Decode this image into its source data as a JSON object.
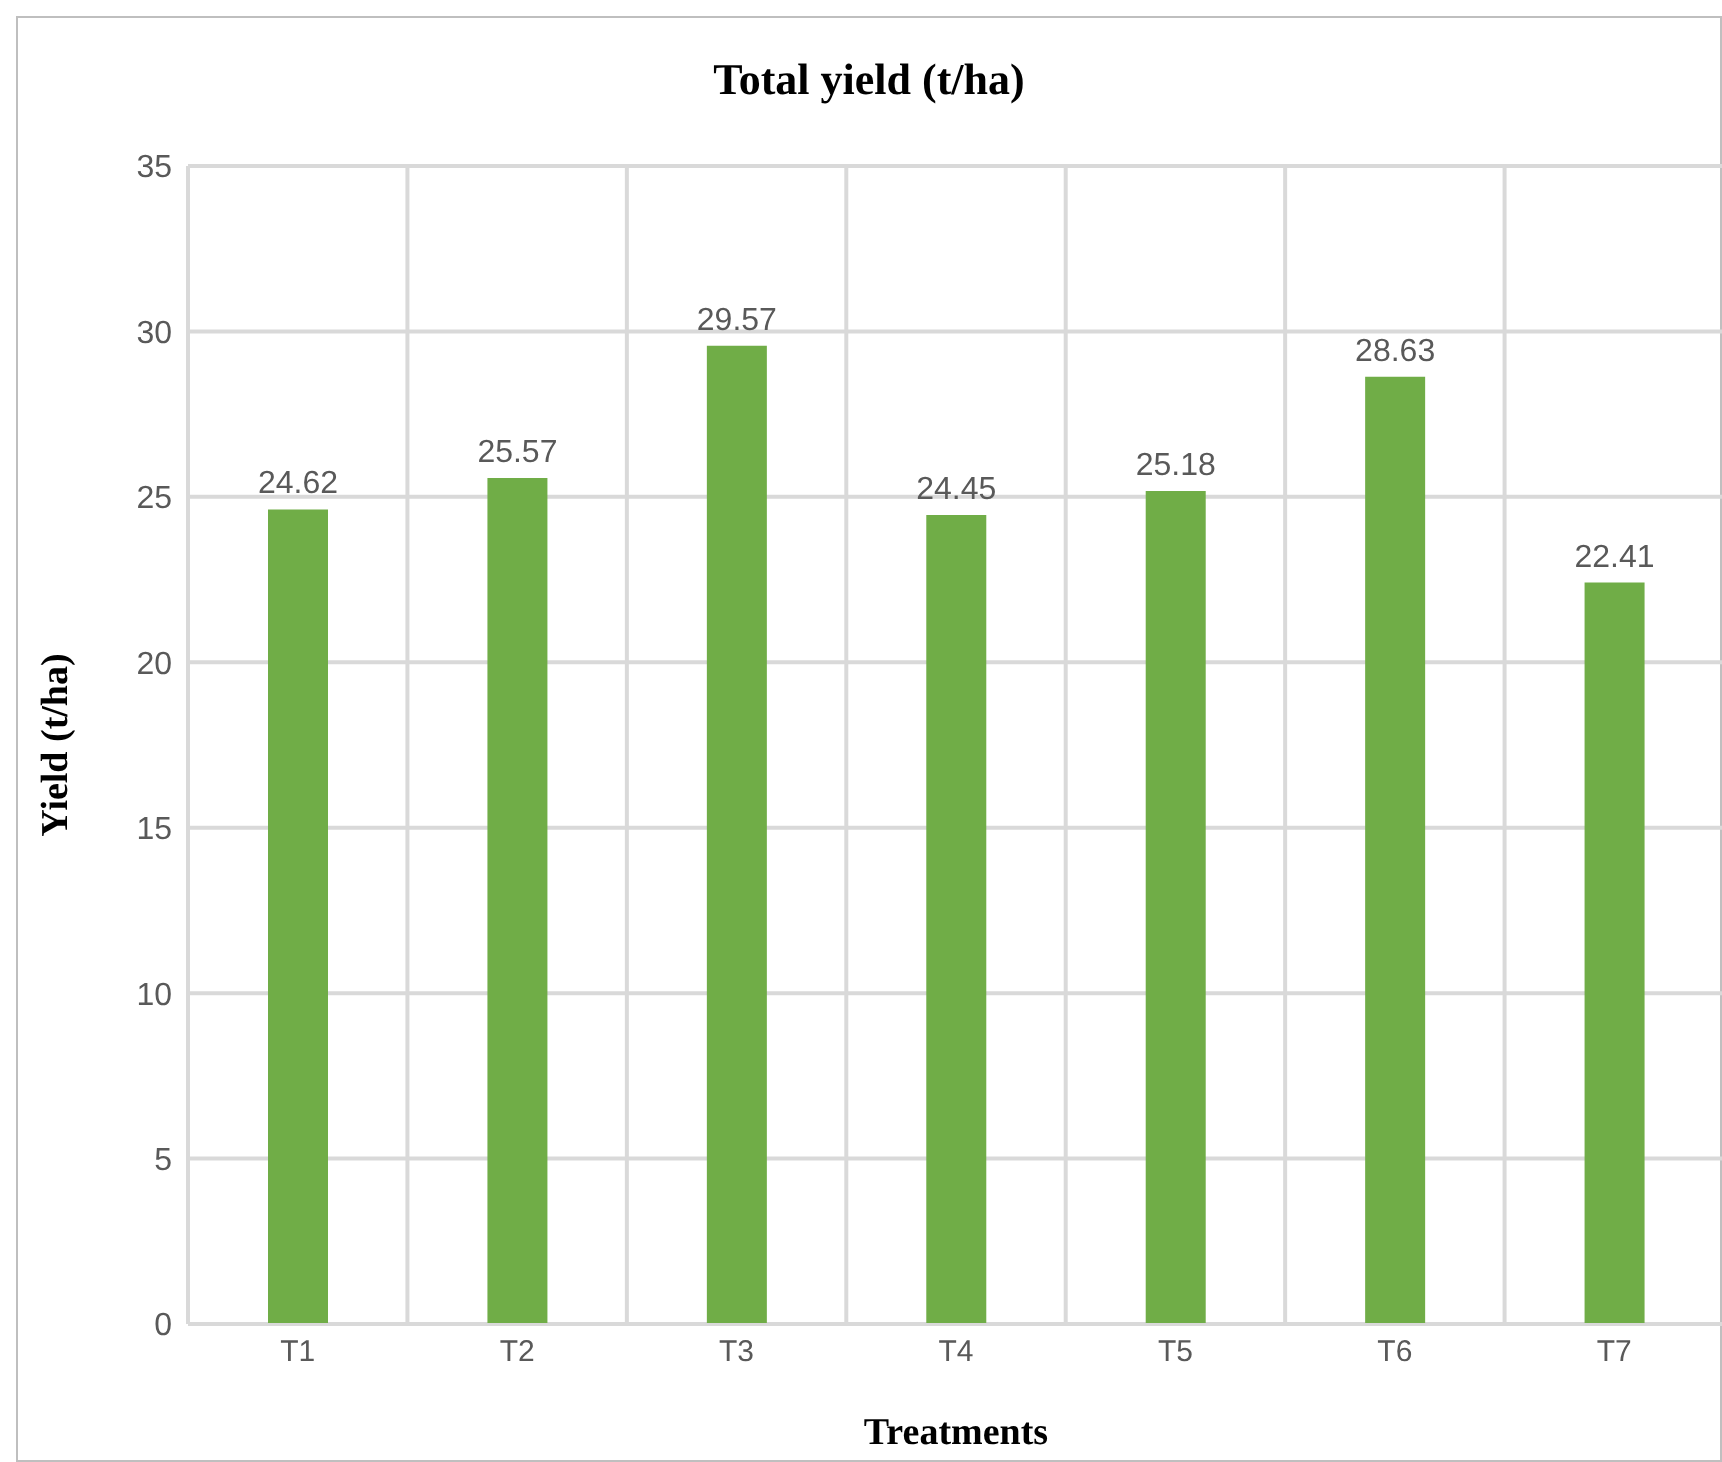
{
  "chart_data": {
    "type": "bar",
    "title": "Total yield (t/ha)",
    "xlabel": "Treatments",
    "ylabel": "Yield (t/ha)",
    "categories": [
      "T1",
      "T2",
      "T3",
      "T4",
      "T5",
      "T6",
      "T7"
    ],
    "values": [
      24.62,
      25.57,
      29.57,
      24.45,
      25.18,
      28.63,
      22.41
    ],
    "color": "#70ad47",
    "ylim": [
      0,
      35
    ],
    "yticks": [
      0,
      5,
      10,
      15,
      20,
      25,
      30,
      35
    ],
    "grid": true,
    "data_labels": true
  }
}
